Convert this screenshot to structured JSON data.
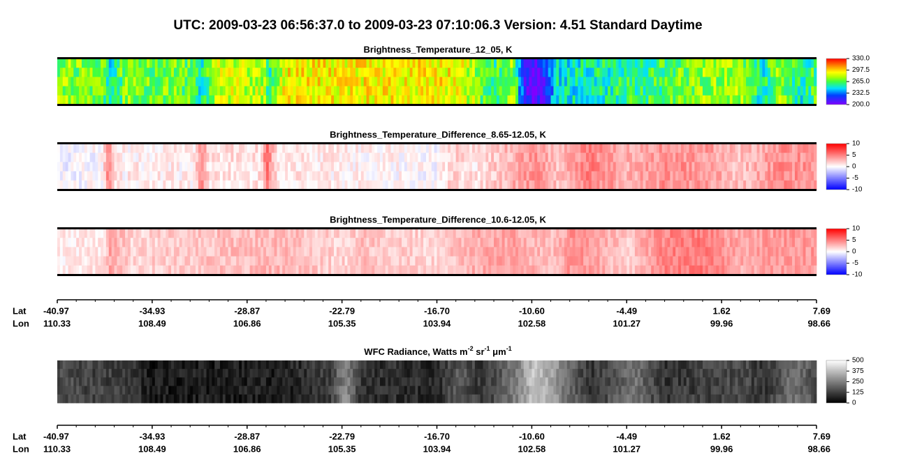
{
  "title": "UTC:  2009-03-23   06:56:37.0  to  2009-03-23   07:10:06.3    Version: 4.51  Standard Daytime",
  "panels": [
    {
      "title": "Brightness_Temperature_12_05, K",
      "colorbar_ticks": [
        "330.0",
        "297.5",
        "265.0",
        "232.5",
        "200.0"
      ]
    },
    {
      "title": "Brightness_Temperature_Difference_8.65-12.05, K",
      "colorbar_ticks": [
        "10",
        "5",
        "0",
        "-5",
        "-10"
      ]
    },
    {
      "title": "Brightness_Temperature_Difference_10.6-12.05, K",
      "colorbar_ticks": [
        "10",
        "5",
        "0",
        "-5",
        "-10"
      ]
    },
    {
      "title": [
        "WFC Radiance, Watts m",
        "-2",
        " sr",
        "-1",
        " μm",
        "-1"
      ],
      "colorbar_ticks": [
        "500",
        "375",
        "250",
        "125",
        "0"
      ]
    }
  ],
  "axes": [
    {
      "lat_label": "Lat",
      "lon_label": "Lon",
      "lat": [
        "-40.97",
        "-34.93",
        "-28.87",
        "-22.79",
        "-16.70",
        "-10.60",
        "-4.49",
        "1.62",
        "7.69"
      ],
      "lon": [
        "110.33",
        "108.49",
        "106.86",
        "105.35",
        "103.94",
        "102.58",
        "101.27",
        "99.96",
        "98.66"
      ]
    },
    {
      "lat_label": "Lat",
      "lon_label": "Lon",
      "lat": [
        "-40.97",
        "-34.93",
        "-28.87",
        "-22.79",
        "-16.70",
        "-10.60",
        "-4.49",
        "1.62",
        "7.69"
      ],
      "lon": [
        "110.33",
        "108.49",
        "106.86",
        "105.35",
        "103.94",
        "102.58",
        "101.27",
        "99.96",
        "98.66"
      ]
    }
  ]
}
